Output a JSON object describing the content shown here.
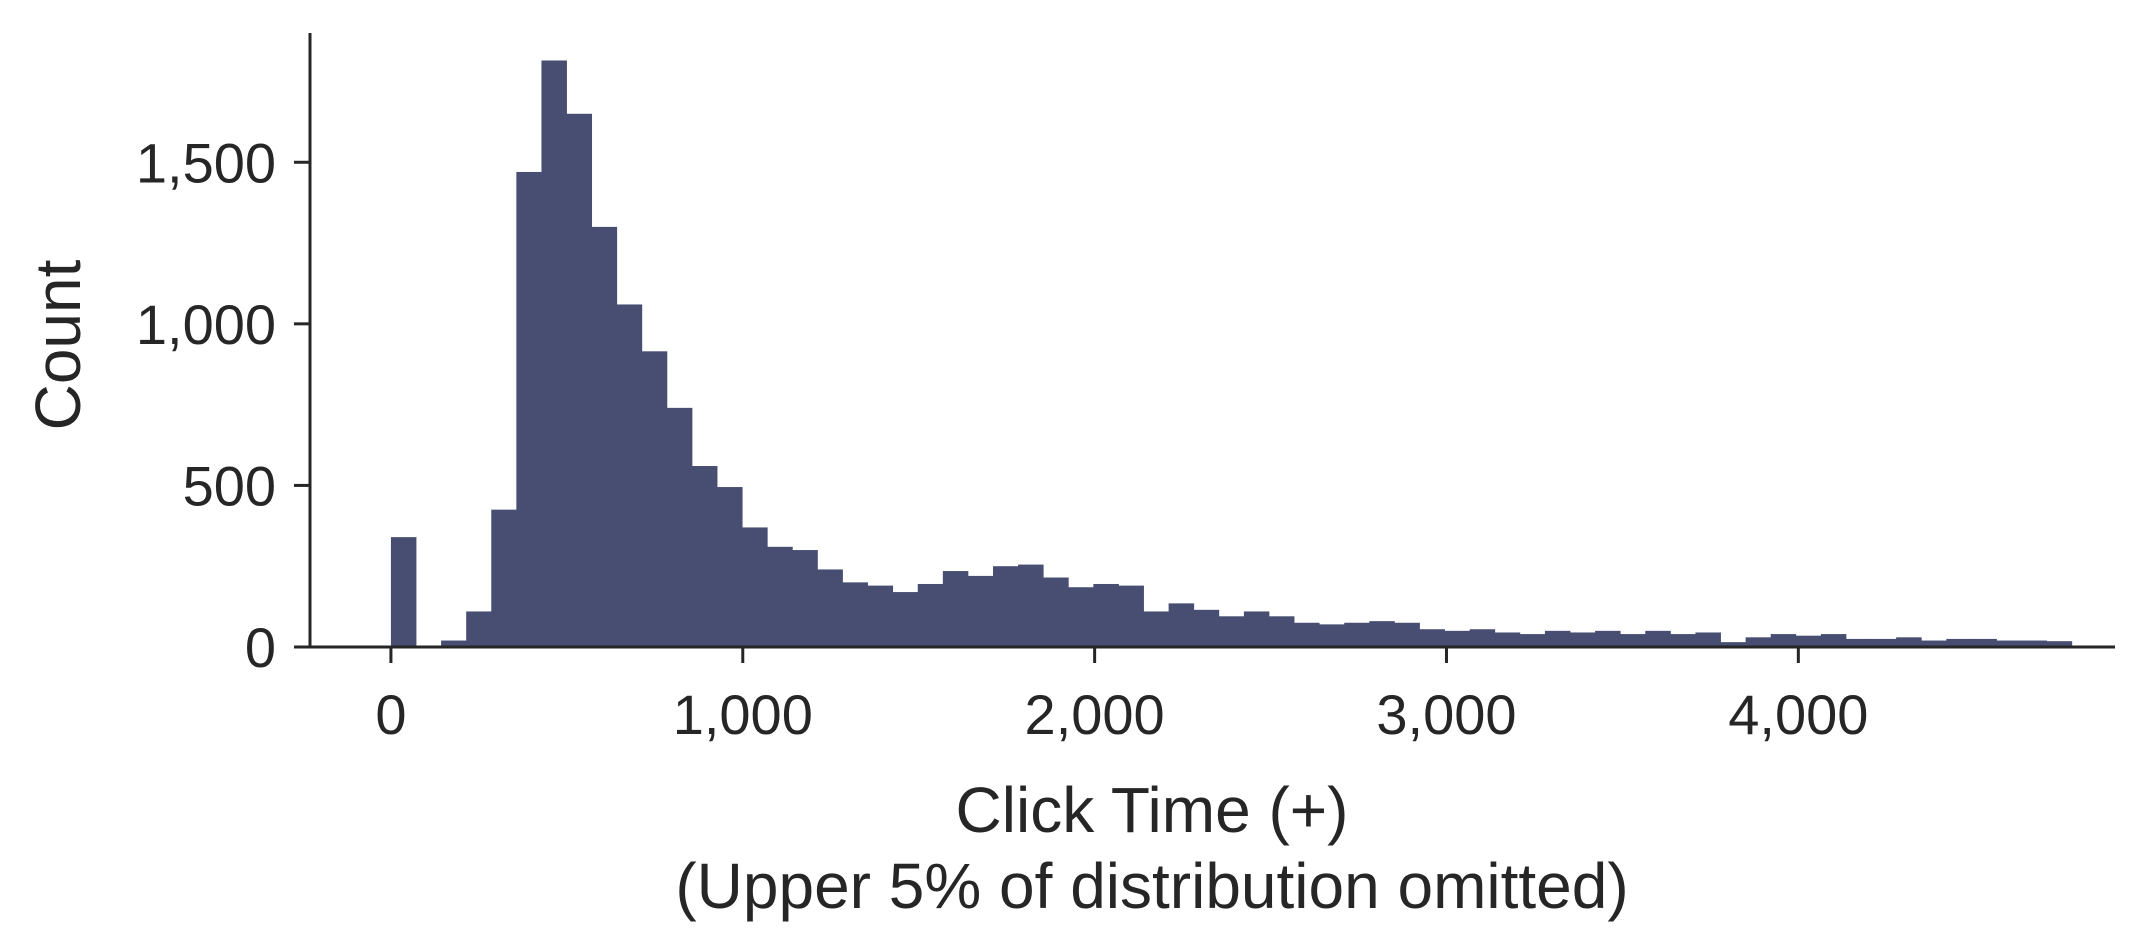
{
  "chart_data": {
    "type": "bar",
    "title": "",
    "xlabel": "Click Time (+)",
    "xlabel_note": "(Upper 5% of distribution omitted)",
    "ylabel": "Count",
    "xlim": [
      -230,
      4900
    ],
    "ylim": [
      0,
      1900
    ],
    "xticks": [
      0,
      1000,
      2000,
      3000,
      4000
    ],
    "xtick_labels": [
      "0",
      "1,000",
      "2,000",
      "3,000",
      "4,000"
    ],
    "yticks": [
      0,
      500,
      1000,
      1500
    ],
    "ytick_labels": [
      "0",
      "500",
      "1,000",
      "1,500"
    ],
    "bin_start": 0,
    "bin_width": 71.3,
    "bin_counts": [
      340,
      0,
      20,
      110,
      425,
      1470,
      1815,
      1650,
      1300,
      1060,
      915,
      740,
      560,
      495,
      370,
      310,
      300,
      240,
      200,
      190,
      170,
      195,
      235,
      220,
      250,
      255,
      215,
      185,
      195,
      190,
      110,
      135,
      115,
      95,
      110,
      95,
      75,
      70,
      75,
      80,
      75,
      55,
      50,
      55,
      45,
      40,
      50,
      45,
      50,
      40,
      50,
      40,
      45,
      15,
      30,
      40,
      35,
      40,
      25,
      25,
      30,
      20,
      25,
      25,
      20,
      20,
      18
    ],
    "grid": false,
    "legend": "none",
    "colors": {
      "bar": "#474e72",
      "axis": "#262626",
      "text": "#262626",
      "background": "#ffffff"
    }
  }
}
